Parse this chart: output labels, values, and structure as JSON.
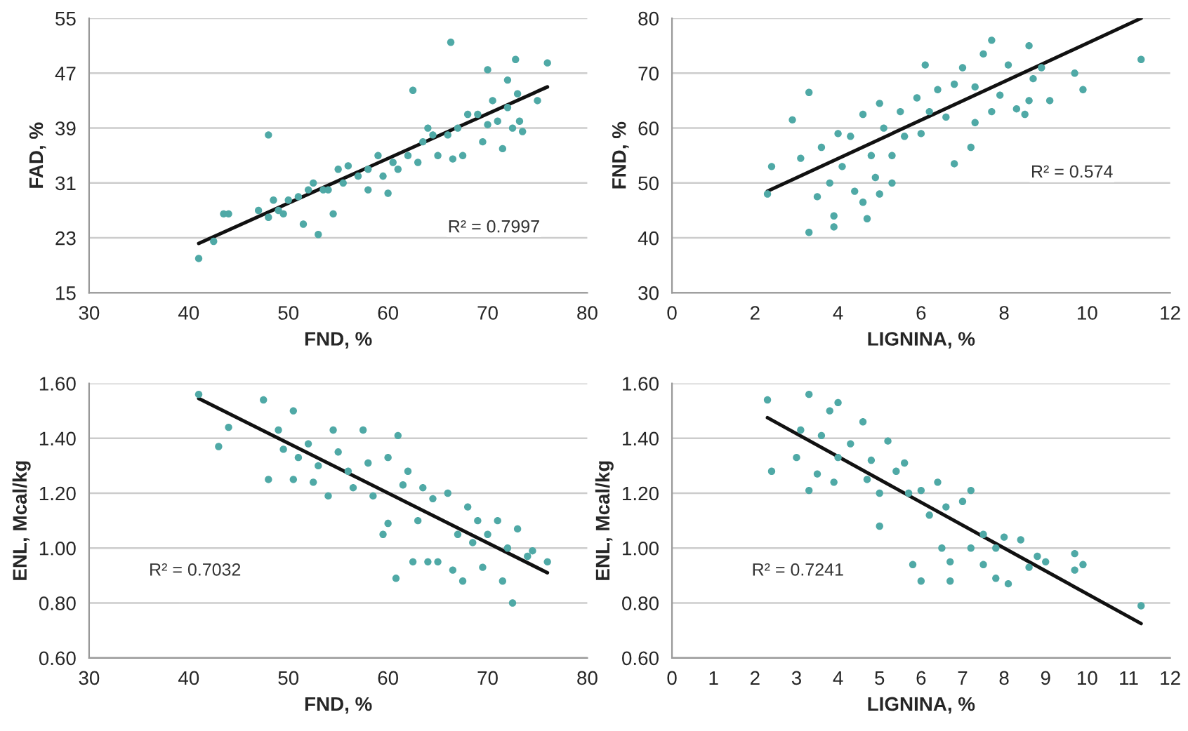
{
  "chart_data": [
    {
      "type": "scatter",
      "xlabel": "FND, %",
      "ylabel": "FAD, %",
      "xlim": [
        30,
        80
      ],
      "xticks": [
        30,
        40,
        50,
        60,
        70,
        80
      ],
      "ylim": [
        15,
        55
      ],
      "yticks": [
        15,
        23,
        31,
        39,
        47,
        55
      ],
      "grid": "y",
      "annotations": [
        "R² = 0.7997"
      ],
      "series": [
        {
          "color": "#4fa9a6",
          "marker": "circle",
          "x": [
            41,
            42.5,
            43.5,
            44,
            47,
            48,
            48,
            48.5,
            49,
            49.5,
            50,
            51,
            51.5,
            52,
            52.5,
            53,
            53.5,
            54,
            54.5,
            55,
            55.5,
            56,
            57,
            58,
            58,
            59,
            59.5,
            60,
            60.5,
            61,
            62,
            62.5,
            63,
            63.5,
            64,
            64.5,
            65,
            66,
            66.3,
            66.5,
            67,
            67.5,
            68,
            69,
            69.5,
            70,
            70,
            70.5,
            71,
            71.5,
            72,
            72,
            72.5,
            72.8,
            73,
            73.2,
            73.5,
            75,
            76
          ],
          "values": [
            20,
            22.5,
            26.5,
            26.5,
            27,
            38,
            26,
            28.5,
            27,
            26.5,
            28.5,
            29,
            25,
            30,
            31,
            23.5,
            30,
            30,
            26.5,
            33,
            31,
            33.5,
            32,
            33,
            30,
            35,
            32,
            29.5,
            34,
            33,
            35,
            44.5,
            34,
            37,
            39,
            38,
            35,
            38,
            51.5,
            34.5,
            39,
            35,
            41,
            41,
            37,
            47.5,
            39.5,
            43,
            40,
            36,
            46,
            42,
            39,
            49,
            44,
            40,
            38.5,
            43,
            48.5
          ]
        },
        {
          "type": "line",
          "color": "#111111",
          "x": [
            41,
            76
          ],
          "values": [
            22.2,
            45
          ]
        }
      ]
    },
    {
      "type": "scatter",
      "xlabel": "LIGNINA, %",
      "ylabel": "FND, %",
      "xlim": [
        0,
        12
      ],
      "xticks": [
        0,
        2,
        4,
        6,
        8,
        10,
        12
      ],
      "ylim": [
        30,
        80
      ],
      "yticks": [
        30,
        40,
        50,
        60,
        70,
        80
      ],
      "grid": "y",
      "annotations": [
        "R² = 0.574"
      ],
      "series": [
        {
          "color": "#4fa9a6",
          "marker": "circle",
          "x": [
            2.3,
            2.4,
            2.9,
            3.1,
            3.3,
            3.3,
            3.5,
            3.6,
            3.8,
            3.9,
            3.9,
            4.0,
            4.1,
            4.3,
            4.4,
            4.6,
            4.6,
            4.7,
            4.8,
            4.9,
            5.0,
            5.0,
            5.1,
            5.3,
            5.3,
            5.5,
            5.6,
            5.9,
            6.0,
            6.1,
            6.2,
            6.4,
            6.6,
            6.8,
            6.8,
            7.0,
            7.2,
            7.3,
            7.3,
            7.5,
            7.7,
            7.7,
            7.9,
            8.1,
            8.3,
            8.5,
            8.6,
            8.6,
            8.7,
            8.9,
            9.1,
            9.7,
            9.9,
            11.3
          ],
          "values": [
            48,
            53,
            61.5,
            54.5,
            66.5,
            41,
            47.5,
            56.5,
            50,
            42,
            44,
            59,
            53,
            58.5,
            48.5,
            62.5,
            46.5,
            43.5,
            55,
            51,
            64.5,
            48,
            60,
            55,
            50,
            63,
            58.5,
            65.5,
            59,
            71.5,
            63,
            67,
            62,
            53.5,
            68,
            71,
            56.5,
            61,
            67.5,
            73.5,
            76,
            63,
            66,
            71.5,
            63.5,
            62.5,
            75,
            65,
            69,
            71,
            65,
            70,
            67,
            72.5
          ]
        },
        {
          "type": "line",
          "color": "#111111",
          "x": [
            2.3,
            11.3
          ],
          "values": [
            48.5,
            80
          ]
        }
      ]
    },
    {
      "type": "scatter",
      "xlabel": "FND, %",
      "ylabel": "ENL, Mcal/kg",
      "xlim": [
        30,
        80
      ],
      "xticks": [
        30,
        40,
        50,
        60,
        70,
        80
      ],
      "ylim": [
        0.6,
        1.6
      ],
      "yticks": [
        {
          "value": 0.6,
          "label": "0.60"
        },
        {
          "value": 0.8,
          "label": "0.80"
        },
        {
          "value": 1.0,
          "label": "1.00"
        },
        {
          "value": 1.2,
          "label": "1.20"
        },
        {
          "value": 1.4,
          "label": "1.40"
        },
        {
          "value": 1.6,
          "label": "1.60"
        }
      ],
      "grid": "y",
      "annotations": [
        "R² = 0.7032"
      ],
      "series": [
        {
          "color": "#4fa9a6",
          "marker": "circle",
          "x": [
            41,
            43,
            44,
            47.5,
            48,
            49,
            49.5,
            50.5,
            50.5,
            51,
            52,
            52.5,
            53,
            54,
            54.5,
            55,
            56,
            56.5,
            57.5,
            58,
            58.5,
            59.5,
            60,
            60,
            60.8,
            61,
            61.5,
            62,
            62.5,
            63,
            63.5,
            64,
            64.5,
            65,
            66,
            66.5,
            67,
            67.5,
            68,
            68.5,
            69,
            69.5,
            70,
            71,
            71.5,
            72,
            72.5,
            73,
            74,
            74.5,
            76
          ],
          "values": [
            1.56,
            1.37,
            1.44,
            1.54,
            1.25,
            1.43,
            1.36,
            1.5,
            1.25,
            1.33,
            1.38,
            1.24,
            1.3,
            1.19,
            1.43,
            1.35,
            1.28,
            1.22,
            1.43,
            1.31,
            1.19,
            1.05,
            1.33,
            1.09,
            0.89,
            1.41,
            1.23,
            1.28,
            0.95,
            1.1,
            1.22,
            0.95,
            1.18,
            0.95,
            1.2,
            0.92,
            1.05,
            0.88,
            1.15,
            1.02,
            1.1,
            0.93,
            1.05,
            1.1,
            0.88,
            1.0,
            0.8,
            1.07,
            0.97,
            0.99,
            0.95
          ]
        },
        {
          "type": "line",
          "color": "#111111",
          "x": [
            41,
            76
          ],
          "values": [
            1.545,
            0.91
          ]
        }
      ]
    },
    {
      "type": "scatter",
      "xlabel": "LIGNINA, %",
      "ylabel": "ENL, Mcal/kg",
      "xlim": [
        0,
        12
      ],
      "xticks": [
        0,
        1,
        2,
        3,
        4,
        5,
        6,
        7,
        8,
        9,
        10,
        11,
        12
      ],
      "ylim": [
        0.6,
        1.6
      ],
      "yticks": [
        {
          "value": 0.6,
          "label": "0.60"
        },
        {
          "value": 0.8,
          "label": "0.80"
        },
        {
          "value": 1.0,
          "label": "1.00"
        },
        {
          "value": 1.2,
          "label": "1.20"
        },
        {
          "value": 1.4,
          "label": "1.40"
        },
        {
          "value": 1.6,
          "label": "1.60"
        }
      ],
      "grid": "y",
      "annotations": [
        "R² = 0.7241"
      ],
      "series": [
        {
          "color": "#4fa9a6",
          "marker": "circle",
          "x": [
            2.3,
            2.4,
            3.0,
            3.1,
            3.3,
            3.3,
            3.5,
            3.6,
            3.8,
            3.9,
            4.0,
            4.0,
            4.3,
            4.6,
            4.7,
            4.8,
            5.0,
            5.0,
            5.2,
            5.4,
            5.6,
            5.7,
            5.8,
            6.0,
            6.0,
            6.2,
            6.4,
            6.5,
            6.6,
            6.7,
            6.7,
            7.0,
            7.2,
            7.2,
            7.5,
            7.5,
            7.8,
            7.8,
            8.0,
            8.1,
            8.4,
            8.6,
            8.8,
            9.0,
            9.7,
            9.7,
            9.9,
            11.3
          ],
          "values": [
            1.54,
            1.28,
            1.33,
            1.43,
            1.21,
            1.56,
            1.27,
            1.41,
            1.5,
            1.24,
            1.53,
            1.33,
            1.38,
            1.46,
            1.25,
            1.32,
            1.08,
            1.2,
            1.39,
            1.28,
            1.31,
            1.2,
            0.94,
            1.21,
            0.88,
            1.12,
            1.24,
            1.0,
            1.15,
            0.88,
            0.95,
            1.17,
            1.21,
            1.0,
            1.05,
            0.94,
            0.89,
            1.0,
            1.04,
            0.87,
            1.03,
            0.93,
            0.97,
            0.95,
            0.98,
            0.92,
            0.94,
            0.79
          ]
        },
        {
          "type": "line",
          "color": "#111111",
          "x": [
            2.3,
            11.3
          ],
          "values": [
            1.475,
            0.725
          ]
        }
      ]
    }
  ]
}
